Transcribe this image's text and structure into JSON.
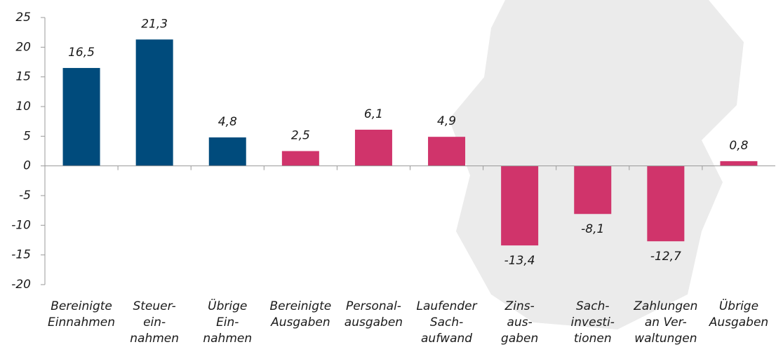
{
  "chart_data": {
    "type": "bar",
    "categories": [
      [
        "Bereinigte",
        "Einnahmen"
      ],
      [
        "Steuer-",
        "ein-",
        "nahmen"
      ],
      [
        "Übrige",
        "Ein-",
        "nahmen"
      ],
      [
        "Bereinigte",
        "Ausgaben"
      ],
      [
        "Personal-",
        "ausgaben"
      ],
      [
        "Laufender",
        "Sach-",
        "aufwand"
      ],
      [
        "Zins-",
        "aus-",
        "gaben"
      ],
      [
        "Sach-",
        "investi-",
        "tionen"
      ],
      [
        "Zahlungen",
        "an Ver-",
        "waltungen"
      ],
      [
        "Übrige",
        "Ausgaben"
      ]
    ],
    "values": [
      16.5,
      21.3,
      4.8,
      2.5,
      6.1,
      4.9,
      -13.4,
      -8.1,
      -12.7,
      0.8
    ],
    "value_labels": [
      "16,5",
      "21,3",
      "4,8",
      "2,5",
      "6,1",
      "4,9",
      "-13,4",
      "-8,1",
      "-12,7",
      "0,8"
    ],
    "colors": [
      "#004b7c",
      "#004b7c",
      "#004b7c",
      "#d0346b",
      "#d0346b",
      "#d0346b",
      "#d0346b",
      "#d0346b",
      "#d0346b",
      "#d0346b"
    ],
    "ylim": [
      -20,
      25
    ],
    "yticks": [
      -20,
      -15,
      -10,
      -5,
      0,
      5,
      10,
      15,
      20,
      25
    ]
  }
}
